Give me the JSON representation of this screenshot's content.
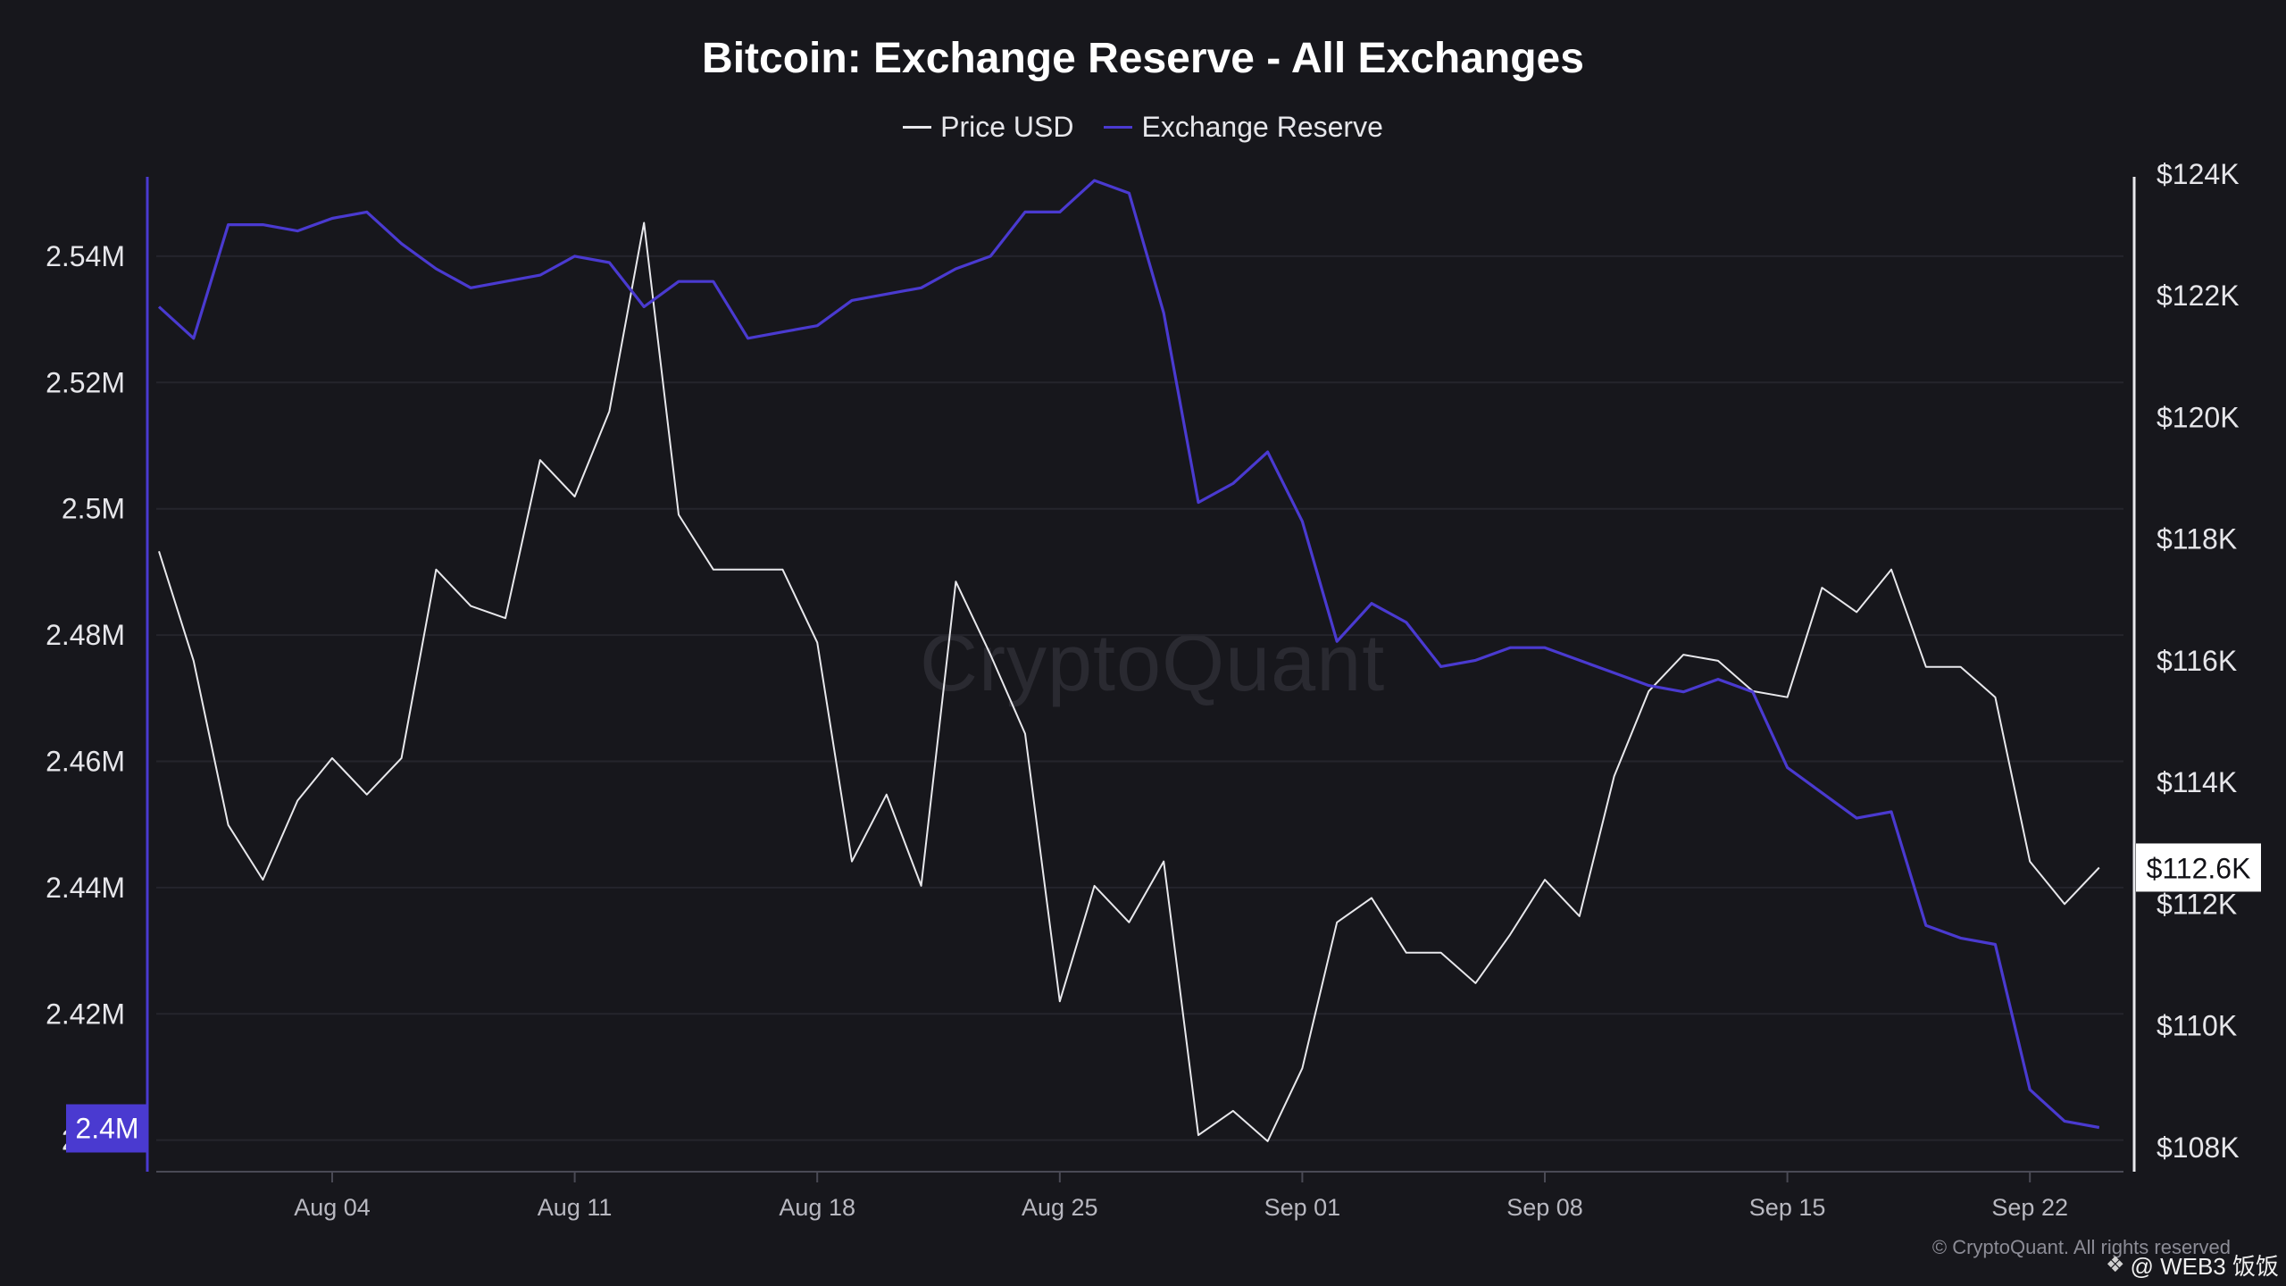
{
  "chart_data": {
    "type": "line",
    "title": "Bitcoin: Exchange Reserve - All Exchanges",
    "x_labels": [
      "Aug 04",
      "Aug 11",
      "Aug 18",
      "Aug 25",
      "Sep 01",
      "Sep 08",
      "Sep 15",
      "Sep 22"
    ],
    "x_start": "Jul 30",
    "left_axis": {
      "ticks": [
        "2.54M",
        "2.52M",
        "2.5M",
        "2.48M",
        "2.46M",
        "2.44M",
        "2.42M",
        "2.4M"
      ],
      "range": [
        2395000,
        2553000
      ]
    },
    "right_axis": {
      "ticks": [
        "$124K",
        "$122K",
        "$120K",
        "$118K",
        "$116K",
        "$114K",
        "$112K",
        "$110K",
        "$108K"
      ],
      "range": [
        107600,
        124000
      ]
    },
    "current_labels": {
      "left": "2.4M",
      "right": "$112.6K"
    },
    "legend_position": "top-center",
    "grid": "horizontal",
    "series": [
      {
        "name": "Price USD",
        "axis": "right",
        "color": "#e8e8ec",
        "values": [
          117800,
          116000,
          113300,
          112400,
          113700,
          114400,
          113800,
          114400,
          117500,
          116900,
          116700,
          119300,
          118700,
          120100,
          123200,
          118400,
          117500,
          117500,
          117500,
          116300,
          112700,
          113800,
          112300,
          117300,
          116100,
          114800,
          110400,
          112300,
          111700,
          112700,
          108200,
          108600,
          108100,
          109300,
          111700,
          112100,
          111200,
          111200,
          110700,
          111500,
          112400,
          111800,
          114100,
          115500,
          116100,
          116000,
          115500,
          115400,
          117200,
          116800,
          117500,
          115900,
          115900,
          115400,
          112700,
          112000,
          112600
        ]
      },
      {
        "name": "Exchange Reserve",
        "axis": "left",
        "color": "#4a3ad0",
        "values": [
          2532000,
          2527000,
          2545000,
          2545000,
          2544000,
          2546000,
          2547000,
          2542000,
          2538000,
          2535000,
          2536000,
          2537000,
          2540000,
          2539000,
          2532000,
          2536000,
          2536000,
          2527000,
          2528000,
          2529000,
          2533000,
          2534000,
          2535000,
          2538000,
          2540000,
          2547000,
          2547000,
          2552000,
          2550000,
          2531000,
          2501000,
          2504000,
          2509000,
          2498000,
          2479000,
          2485000,
          2482000,
          2475000,
          2476000,
          2478000,
          2478000,
          2476000,
          2474000,
          2472000,
          2471000,
          2473000,
          2471000,
          2459000,
          2455000,
          2451000,
          2452000,
          2434000,
          2432000,
          2431000,
          2408000,
          2403000,
          2402000
        ]
      }
    ]
  },
  "watermark": "CryptoQuant",
  "copyright": "© CryptoQuant. All rights reserved",
  "credit": {
    "icon": "diamond-logo-icon",
    "text": "@ WEB3 饭饭"
  }
}
